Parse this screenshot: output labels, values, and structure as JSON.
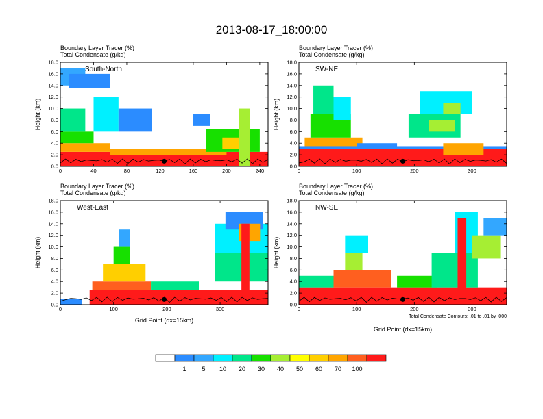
{
  "title": "2013-08-17_18:00:00",
  "colorbar": {
    "labels": [
      "1",
      "5",
      "10",
      "20",
      "30",
      "40",
      "50",
      "60",
      "70",
      "100"
    ],
    "colors": [
      "#ffffff",
      "#2b8cff",
      "#33a7ff",
      "#00f0ff",
      "#00e68a",
      "#17e000",
      "#a6ee33",
      "#ffff00",
      "#ffcf00",
      "#ffa500",
      "#ff5f1f",
      "#ff1a1a"
    ]
  },
  "chart_data": [
    {
      "type": "heatmap",
      "name_label": "South-North",
      "header_line1": "Boundary Layer Tracer   (%)",
      "header_line2": "Total Condensate   (g/kg)",
      "ylabel": "Height (km)",
      "xlabel": "",
      "xlim": [
        0,
        250
      ],
      "ylim": [
        0,
        18
      ],
      "xticks": [
        "0",
        "40",
        "80",
        "120",
        "160",
        "200",
        "240"
      ],
      "yticks": [
        "0.0",
        "2.0",
        "4.0",
        "6.0",
        "8.0",
        "10.0",
        "12.0",
        "14.0",
        "16.0",
        "18.0"
      ],
      "marker_x": 125
    },
    {
      "type": "heatmap",
      "name_label": "SW-NE",
      "header_line1": "Boundary Layer Tracer   (%)",
      "header_line2": "Total Condensate   (g/kg)",
      "ylabel": "Height (km)",
      "xlabel": "",
      "xlim": [
        0,
        360
      ],
      "ylim": [
        0,
        18
      ],
      "xticks": [
        "0",
        "100",
        "200",
        "300"
      ],
      "yticks": [
        "0.0",
        "2.0",
        "4.0",
        "6.0",
        "8.0",
        "10.0",
        "12.0",
        "14.0",
        "16.0",
        "18.0"
      ],
      "marker_x": 180
    },
    {
      "type": "heatmap",
      "name_label": "West-East",
      "header_line1": "Boundary Layer Tracer   (%)",
      "header_line2": "Total Condensate   (g/kg)",
      "ylabel": "Height (km)",
      "xlabel": "Grid Point (dx=15km)",
      "xlim": [
        0,
        390
      ],
      "ylim": [
        0,
        18
      ],
      "xticks": [
        "0",
        "100",
        "200",
        "300"
      ],
      "yticks": [
        "0.0",
        "2.0",
        "4.0",
        "6.0",
        "8.0",
        "10.0",
        "12.0",
        "14.0",
        "16.0",
        "18.0"
      ],
      "marker_x": 195
    },
    {
      "type": "heatmap",
      "name_label": "NW-SE",
      "header_line1": "Boundary Layer Tracer   (%)",
      "header_line2": "Total Condensate   (g/kg)",
      "ylabel": "Height (km)",
      "xlabel": "Grid Point (dx=15km)",
      "xlim": [
        0,
        360
      ],
      "ylim": [
        0,
        18
      ],
      "xticks": [
        "0",
        "100",
        "200",
        "300"
      ],
      "yticks": [
        "0.0",
        "2.0",
        "4.0",
        "6.0",
        "8.0",
        "10.0",
        "12.0",
        "14.0",
        "16.0",
        "18.0"
      ],
      "marker_x": 180,
      "footnote": "Total Condensate Contours: .01 to .01 by .000"
    }
  ]
}
